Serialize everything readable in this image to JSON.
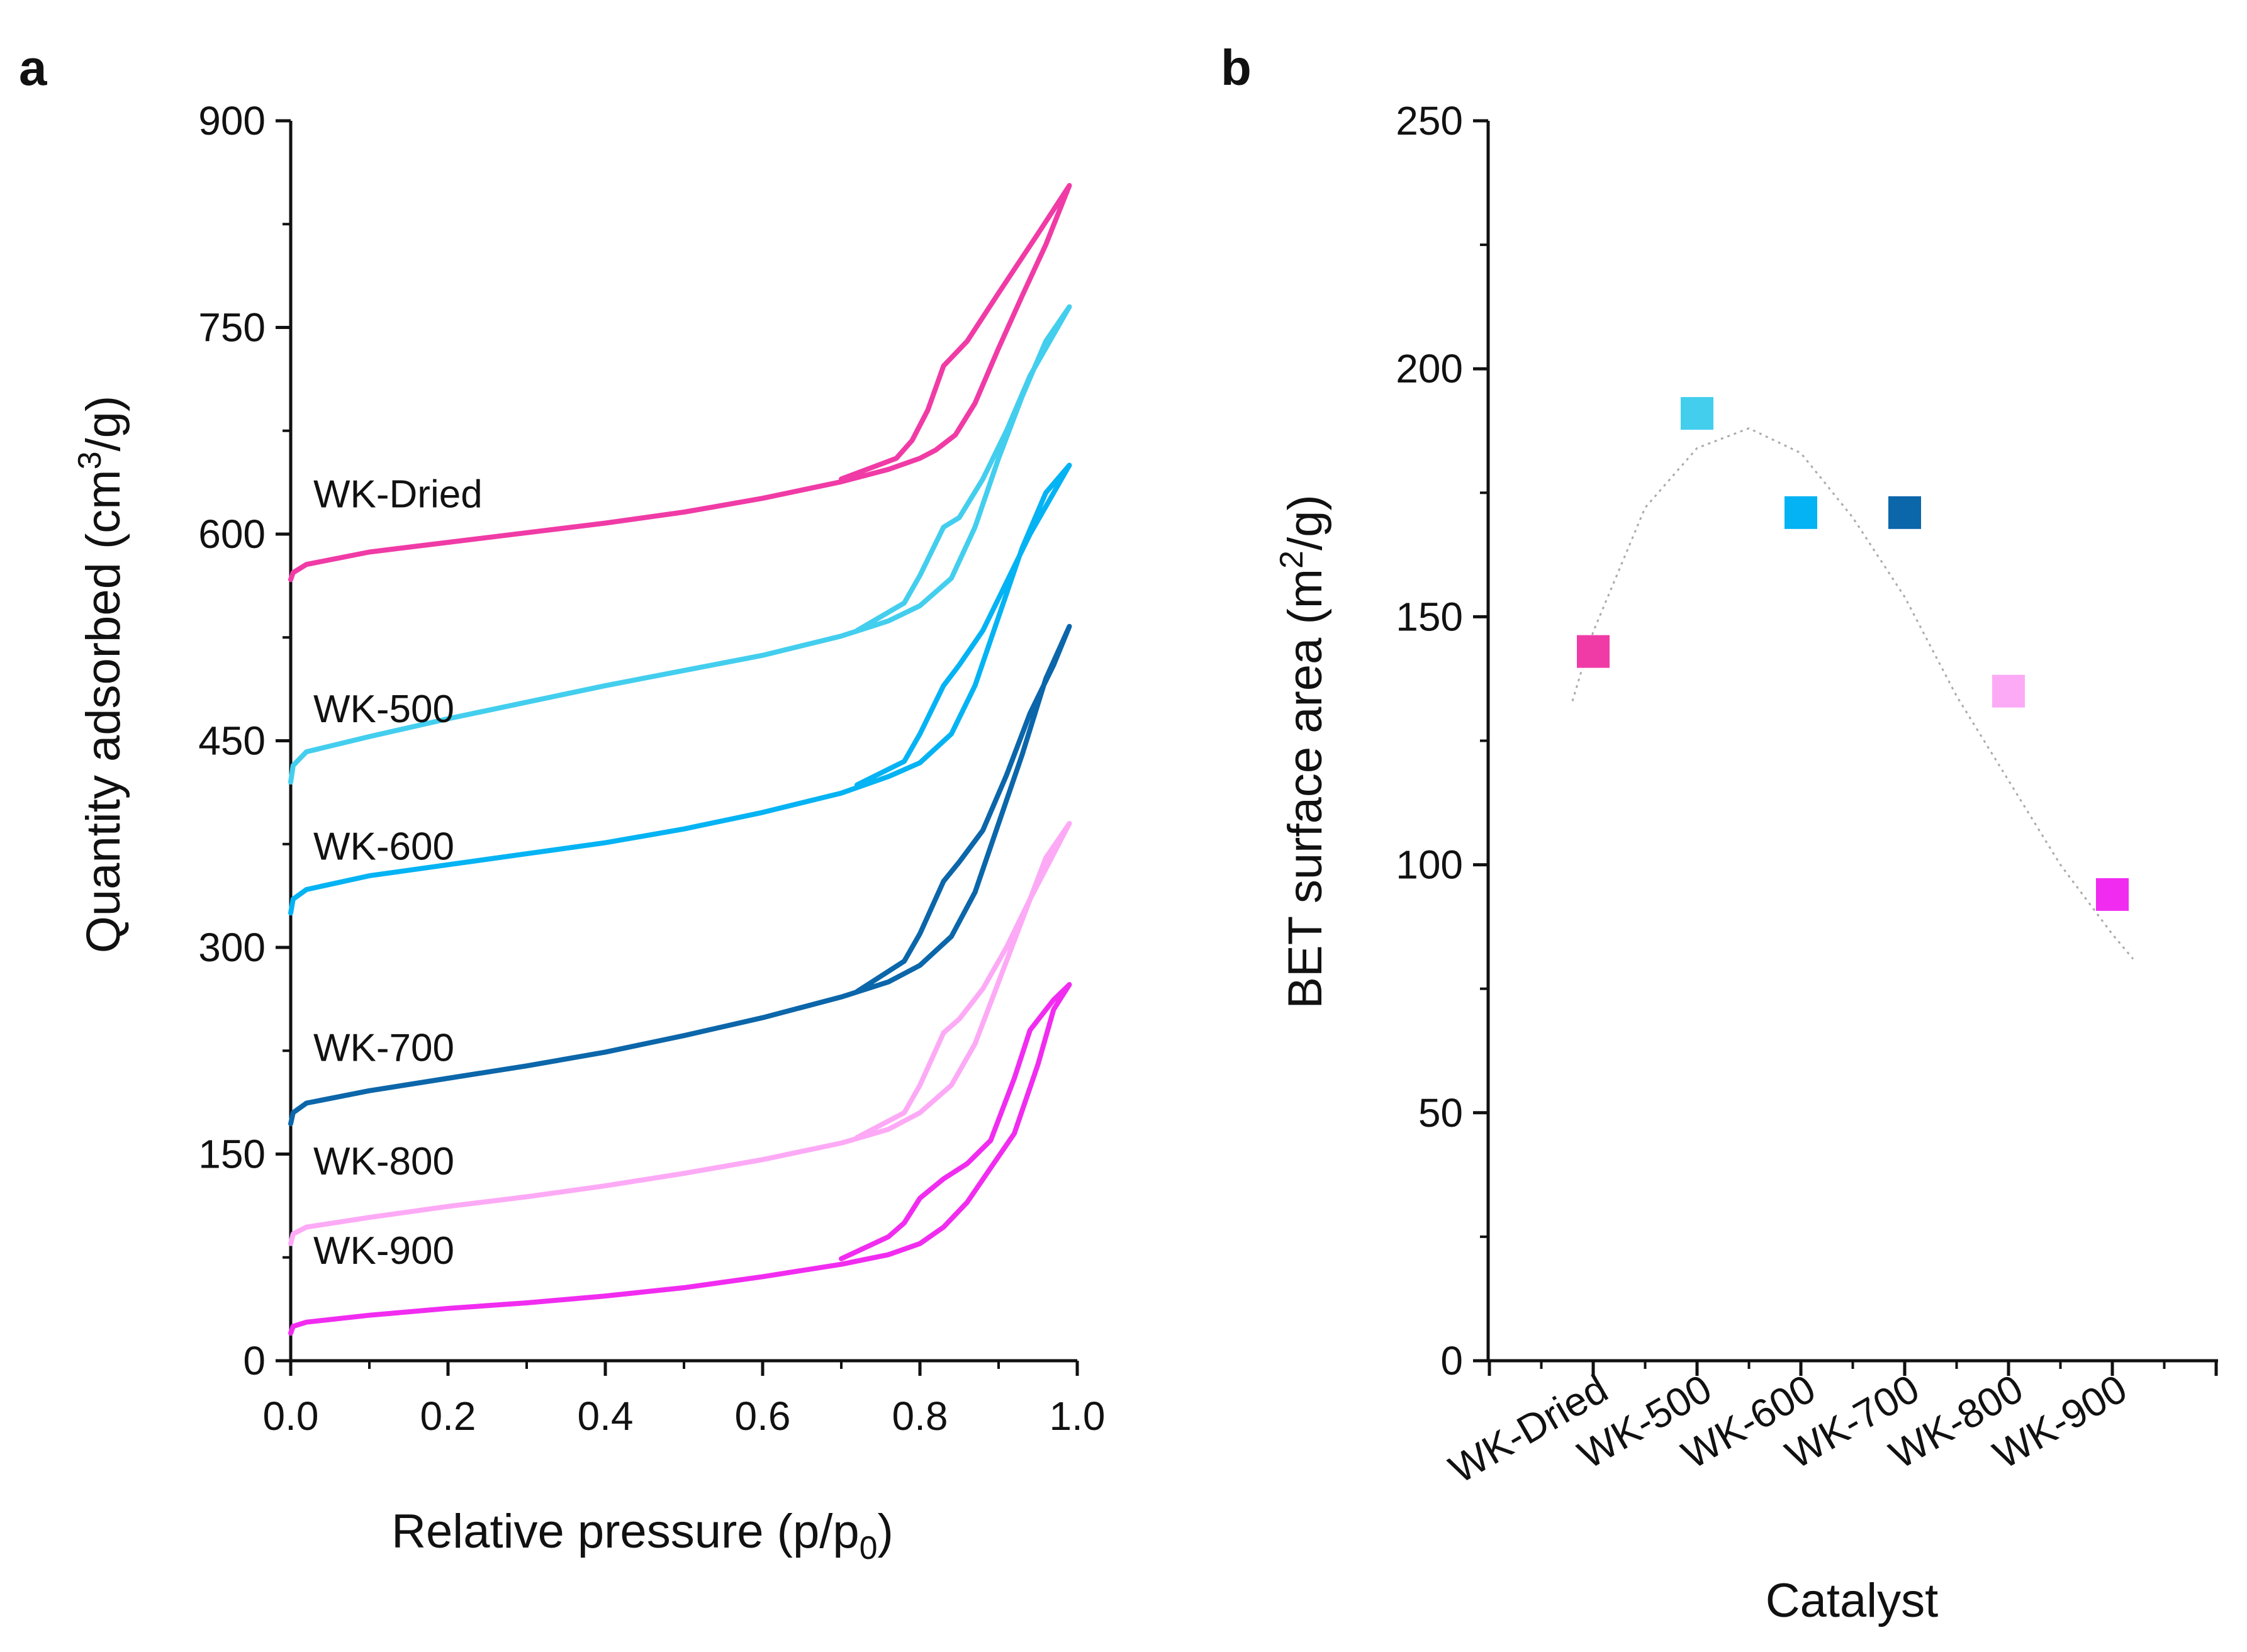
{
  "panels": {
    "a": "a",
    "b": "b"
  },
  "chart_data": [
    {
      "type": "line",
      "panel": "a",
      "title": "",
      "xlabel_main": "Relative pressure (p/p",
      "xlabel_sub": "0",
      "xlabel_end": ")",
      "ylabel_main": "Quantity adsorbed (cm",
      "ylabel_sup": "3",
      "ylabel_end": "/g)",
      "xlim": [
        0,
        1.0
      ],
      "ylim": [
        0,
        900
      ],
      "xticks": [
        "0.0",
        "0.2",
        "0.4",
        "0.6",
        "0.8",
        "1.0"
      ],
      "xtick_values": [
        0,
        0.2,
        0.4,
        0.6,
        0.8,
        1.0
      ],
      "yticks": [
        "0",
        "150",
        "300",
        "450",
        "600",
        "750",
        "900"
      ],
      "ytick_values": [
        0,
        150,
        300,
        450,
        600,
        750,
        900
      ],
      "series": [
        {
          "name": "WK-Dried",
          "color": "#f03ba6",
          "adsorption": [
            [
              0.0,
              567
            ],
            [
              0.003,
              572
            ],
            [
              0.02,
              578
            ],
            [
              0.1,
              587
            ],
            [
              0.2,
              594
            ],
            [
              0.3,
              601
            ],
            [
              0.4,
              608
            ],
            [
              0.5,
              616
            ],
            [
              0.6,
              626
            ],
            [
              0.7,
              638
            ],
            [
              0.76,
              647
            ],
            [
              0.8,
              655
            ],
            [
              0.82,
              661
            ],
            [
              0.845,
              672
            ],
            [
              0.87,
              695
            ],
            [
              0.9,
              735
            ],
            [
              0.93,
              773
            ],
            [
              0.96,
              810
            ],
            [
              0.99,
              853
            ]
          ],
          "desorption": [
            [
              0.99,
              853
            ],
            [
              0.95,
              818
            ],
            [
              0.9,
              775
            ],
            [
              0.86,
              740
            ],
            [
              0.83,
              722
            ],
            [
              0.81,
              690
            ],
            [
              0.79,
              668
            ],
            [
              0.77,
              655
            ],
            [
              0.7,
              640
            ]
          ]
        },
        {
          "name": "WK-500",
          "color": "#43ceee",
          "adsorption": [
            [
              0.0,
              420
            ],
            [
              0.003,
              432
            ],
            [
              0.02,
              442
            ],
            [
              0.1,
              453
            ],
            [
              0.2,
              466
            ],
            [
              0.3,
              478
            ],
            [
              0.4,
              490
            ],
            [
              0.5,
              501
            ],
            [
              0.6,
              512
            ],
            [
              0.7,
              526
            ],
            [
              0.76,
              537
            ],
            [
              0.8,
              548
            ],
            [
              0.84,
              568
            ],
            [
              0.87,
              605
            ],
            [
              0.9,
              655
            ],
            [
              0.93,
              700
            ],
            [
              0.96,
              740
            ],
            [
              0.99,
              765
            ]
          ],
          "desorption": [
            [
              0.99,
              765
            ],
            [
              0.97,
              745
            ],
            [
              0.94,
              715
            ],
            [
              0.91,
              675
            ],
            [
              0.88,
              640
            ],
            [
              0.85,
              612
            ],
            [
              0.83,
              605
            ],
            [
              0.8,
              570
            ],
            [
              0.78,
              550
            ],
            [
              0.72,
              530
            ]
          ]
        },
        {
          "name": "WK-600",
          "color": "#04b3f3",
          "adsorption": [
            [
              0.0,
              325
            ],
            [
              0.003,
              335
            ],
            [
              0.02,
              342
            ],
            [
              0.1,
              352
            ],
            [
              0.2,
              360
            ],
            [
              0.3,
              368
            ],
            [
              0.4,
              376
            ],
            [
              0.5,
              386
            ],
            [
              0.6,
              398
            ],
            [
              0.7,
              412
            ],
            [
              0.76,
              424
            ],
            [
              0.8,
              434
            ],
            [
              0.84,
              455
            ],
            [
              0.87,
              490
            ],
            [
              0.9,
              540
            ],
            [
              0.93,
              590
            ],
            [
              0.96,
              630
            ],
            [
              0.99,
              650
            ]
          ],
          "desorption": [
            [
              0.99,
              650
            ],
            [
              0.97,
              630
            ],
            [
              0.94,
              600
            ],
            [
              0.91,
              565
            ],
            [
              0.88,
              530
            ],
            [
              0.85,
              505
            ],
            [
              0.83,
              490
            ],
            [
              0.8,
              455
            ],
            [
              0.78,
              435
            ],
            [
              0.72,
              418
            ]
          ]
        },
        {
          "name": "WK-700",
          "color": "#0b66aa",
          "adsorption": [
            [
              0.0,
              172
            ],
            [
              0.003,
              180
            ],
            [
              0.02,
              187
            ],
            [
              0.1,
              196
            ],
            [
              0.2,
              205
            ],
            [
              0.3,
              214
            ],
            [
              0.4,
              224
            ],
            [
              0.5,
              236
            ],
            [
              0.6,
              249
            ],
            [
              0.7,
              264
            ],
            [
              0.76,
              275
            ],
            [
              0.8,
              287
            ],
            [
              0.84,
              308
            ],
            [
              0.87,
              340
            ],
            [
              0.9,
              390
            ],
            [
              0.93,
              440
            ],
            [
              0.96,
              495
            ],
            [
              0.99,
              533
            ]
          ],
          "desorption": [
            [
              0.99,
              533
            ],
            [
              0.97,
              505
            ],
            [
              0.94,
              470
            ],
            [
              0.91,
              425
            ],
            [
              0.88,
              385
            ],
            [
              0.85,
              362
            ],
            [
              0.83,
              348
            ],
            [
              0.8,
              310
            ],
            [
              0.78,
              290
            ],
            [
              0.72,
              268
            ]
          ]
        },
        {
          "name": "WK-800",
          "color": "#fdaaf6",
          "adsorption": [
            [
              0.0,
              85
            ],
            [
              0.003,
              92
            ],
            [
              0.02,
              97
            ],
            [
              0.1,
              104
            ],
            [
              0.2,
              112
            ],
            [
              0.3,
              119
            ],
            [
              0.4,
              127
            ],
            [
              0.5,
              136
            ],
            [
              0.6,
              146
            ],
            [
              0.7,
              158
            ],
            [
              0.76,
              168
            ],
            [
              0.8,
              180
            ],
            [
              0.84,
              200
            ],
            [
              0.87,
              230
            ],
            [
              0.9,
              275
            ],
            [
              0.93,
              320
            ],
            [
              0.96,
              365
            ],
            [
              0.99,
              390
            ]
          ],
          "desorption": [
            [
              0.99,
              390
            ],
            [
              0.97,
              368
            ],
            [
              0.94,
              335
            ],
            [
              0.91,
              300
            ],
            [
              0.88,
              270
            ],
            [
              0.85,
              248
            ],
            [
              0.83,
              238
            ],
            [
              0.8,
              200
            ],
            [
              0.78,
              180
            ],
            [
              0.72,
              162
            ]
          ]
        },
        {
          "name": "WK-900",
          "color": "#f12cf0",
          "adsorption": [
            [
              0.0,
              20
            ],
            [
              0.003,
              25
            ],
            [
              0.02,
              28
            ],
            [
              0.1,
              33
            ],
            [
              0.2,
              38
            ],
            [
              0.3,
              42
            ],
            [
              0.4,
              47
            ],
            [
              0.5,
              53
            ],
            [
              0.6,
              61
            ],
            [
              0.7,
              70
            ],
            [
              0.76,
              77
            ],
            [
              0.8,
              85
            ],
            [
              0.83,
              97
            ],
            [
              0.86,
              115
            ],
            [
              0.89,
              140
            ],
            [
              0.92,
              165
            ],
            [
              0.95,
              215
            ],
            [
              0.97,
              255
            ],
            [
              0.99,
              273
            ]
          ],
          "desorption": [
            [
              0.99,
              273
            ],
            [
              0.97,
              262
            ],
            [
              0.94,
              240
            ],
            [
              0.92,
              205
            ],
            [
              0.89,
              160
            ],
            [
              0.86,
              143
            ],
            [
              0.83,
              132
            ],
            [
              0.8,
              118
            ],
            [
              0.78,
              100
            ],
            [
              0.76,
              90
            ],
            [
              0.7,
              74
            ]
          ]
        }
      ]
    },
    {
      "type": "scatter",
      "panel": "b",
      "title": "",
      "xlabel": "Catalyst",
      "ylabel_main": "BET surface area (m",
      "ylabel_sup": "2",
      "ylabel_end": "/g)",
      "ylim": [
        0,
        250
      ],
      "yticks": [
        "0",
        "50",
        "100",
        "150",
        "200",
        "250"
      ],
      "ytick_values": [
        0,
        50,
        100,
        150,
        200,
        250
      ],
      "categories": [
        "WK-Dried",
        "WK-500",
        "WK-600",
        "WK-700",
        "WK-800",
        "WK-900"
      ],
      "values": [
        143,
        191,
        171,
        171,
        135,
        94
      ],
      "colors": [
        "#f03ba6",
        "#43ceee",
        "#04b3f3",
        "#0b66aa",
        "#fdaaf6",
        "#f12cf0"
      ],
      "fit": {
        "style": "dotted",
        "color": "#aaaaaa",
        "points": [
          [
            -0.2,
            133
          ],
          [
            0.0,
            147
          ],
          [
            0.5,
            172
          ],
          [
            1.0,
            184
          ],
          [
            1.5,
            188
          ],
          [
            2.0,
            183
          ],
          [
            2.5,
            170
          ],
          [
            3.0,
            154
          ],
          [
            3.5,
            134
          ],
          [
            4.0,
            117
          ],
          [
            4.5,
            100
          ],
          [
            5.0,
            86
          ],
          [
            5.2,
            81
          ]
        ]
      }
    }
  ]
}
